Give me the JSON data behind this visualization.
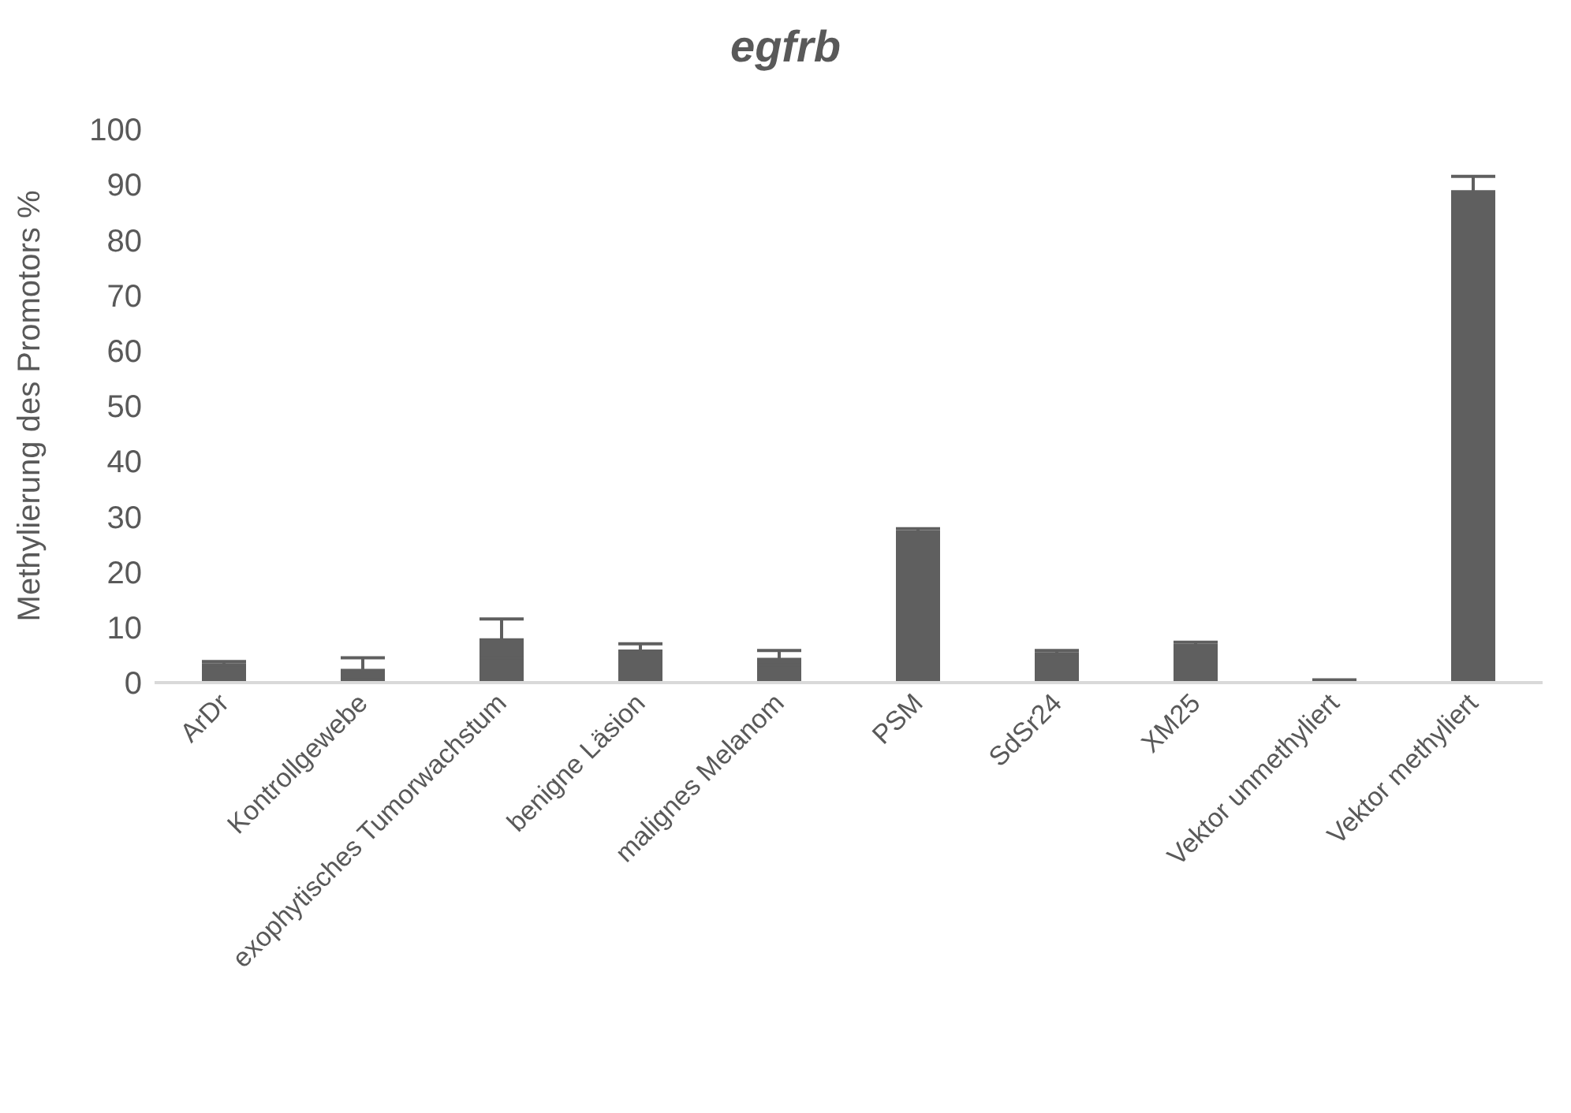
{
  "chart_data": {
    "type": "bar",
    "title": "egfrb",
    "ylabel": "Methylierung des Promotors %",
    "categories": [
      "ArDr",
      "Kontrollgewebe",
      "exophytisches Tumorwachstum",
      "benigne Läsion",
      "malignes Melanom",
      "PSM",
      "SdSr24",
      "XM25",
      "Vektor unmethyliert",
      "Vektor methyliert"
    ],
    "values": [
      3.5,
      2.5,
      8,
      6,
      4.5,
      27.5,
      5.5,
      7,
      0.8,
      89
    ],
    "errors": [
      0.3,
      2,
      3.5,
      1,
      1.3,
      0.3,
      0.3,
      0.3,
      null,
      2.5
    ],
    "color": "#5f5f5f",
    "ylim": [
      0,
      100
    ],
    "yticks": [
      0,
      10,
      20,
      30,
      40,
      50,
      60,
      70,
      80,
      90,
      100
    ],
    "grid": false
  }
}
